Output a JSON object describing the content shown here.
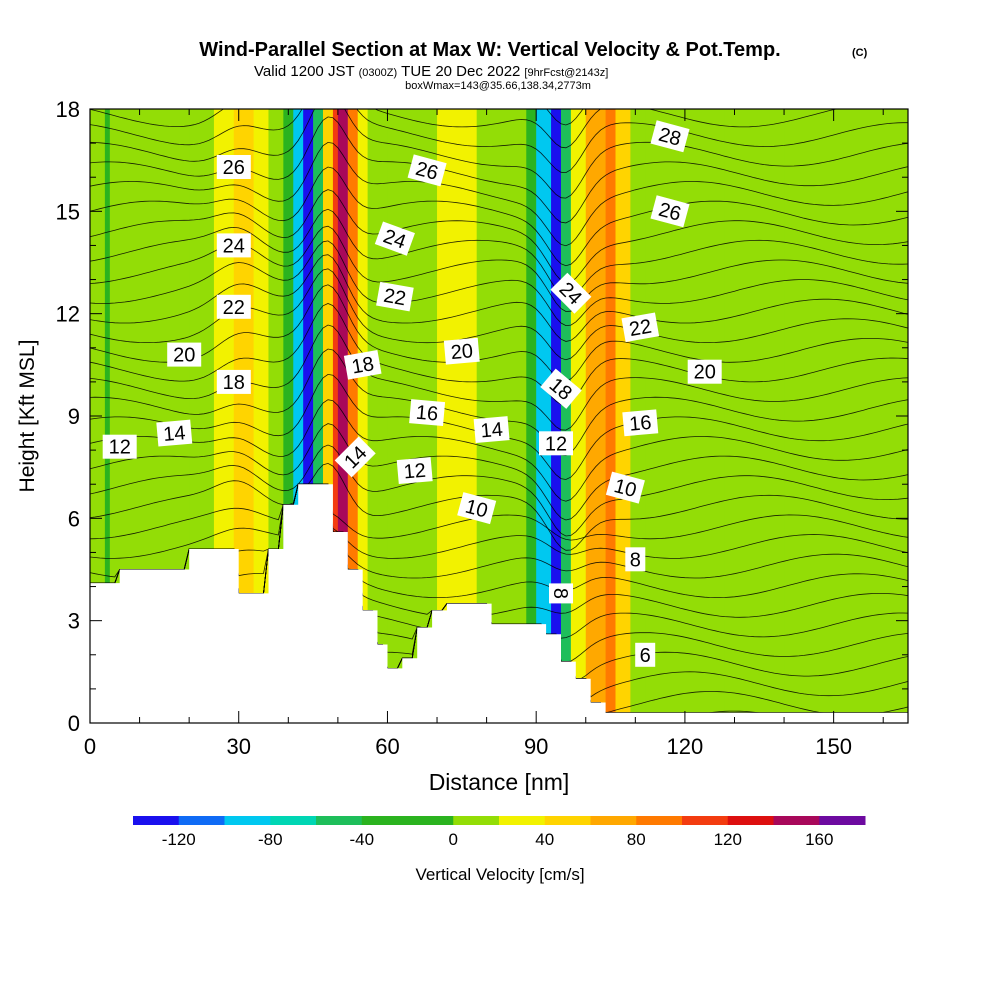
{
  "chart_data": {
    "type": "heatmap",
    "title": "Wind-Parallel Section at Max W: Vertical Velocity & Pot.Temp.",
    "title_units": "(C)",
    "subtitle_main": "Valid 1200 JST",
    "subtitle_utc": "(0300Z)",
    "subtitle_date": "TUE 20 Dec 2022",
    "subtitle_fcst": "[9hrFcst@2143z]",
    "subtitle_box": "boxWmax=143@35.66,138.34,2773m",
    "xlabel": "Distance [nm]",
    "ylabel": "Height [Kft MSL]",
    "xlim": [
      0,
      165
    ],
    "ylim": [
      0,
      18
    ],
    "x_ticks": [
      "0",
      "30",
      "60",
      "90",
      "120",
      "150"
    ],
    "x_tick_values": [
      0,
      30,
      60,
      90,
      120,
      150
    ],
    "y_ticks": [
      "0",
      "3",
      "6",
      "9",
      "12",
      "15",
      "18"
    ],
    "y_tick_values": [
      0,
      3,
      6,
      9,
      12,
      15,
      18
    ],
    "colorbar": {
      "label": "Vertical Velocity [cm/s]",
      "tick_labels": [
        "-120",
        "-80",
        "-40",
        "0",
        "40",
        "80",
        "120",
        "160"
      ],
      "tick_values": [
        -120,
        -80,
        -40,
        0,
        40,
        80,
        120,
        160
      ],
      "bounds": [
        -140,
        -120,
        -100,
        -80,
        -60,
        -40,
        -20,
        0,
        20,
        40,
        60,
        80,
        100,
        120,
        140,
        160,
        180
      ],
      "colors": [
        "#1a10ee",
        "#0f6bf5",
        "#00c8f0",
        "#00d6b4",
        "#1ebe5a",
        "#2bb31f",
        "#2bb31f",
        "#93dd06",
        "#f2f200",
        "#ffd400",
        "#ffa800",
        "#ff7a00",
        "#f33c10",
        "#dd0f0f",
        "#a8085a",
        "#6d0aa0"
      ]
    },
    "terrain_kft": [
      [
        0,
        4.1
      ],
      [
        6,
        4.1
      ],
      [
        6,
        4.5
      ],
      [
        20,
        4.5
      ],
      [
        20,
        5.1
      ],
      [
        30,
        5.1
      ],
      [
        30,
        3.8
      ],
      [
        36,
        3.8
      ],
      [
        36,
        5.1
      ],
      [
        39,
        5.1
      ],
      [
        39,
        6.4
      ],
      [
        42,
        6.4
      ],
      [
        42,
        7.0
      ],
      [
        49,
        7.0
      ],
      [
        49,
        5.6
      ],
      [
        52,
        5.6
      ],
      [
        52,
        4.5
      ],
      [
        55,
        4.5
      ],
      [
        55,
        3.3
      ],
      [
        58,
        3.3
      ],
      [
        58,
        2.3
      ],
      [
        60,
        2.3
      ],
      [
        60,
        1.6
      ],
      [
        63,
        1.6
      ],
      [
        63,
        1.9
      ],
      [
        66,
        1.9
      ],
      [
        66,
        2.8
      ],
      [
        69,
        2.8
      ],
      [
        69,
        3.3
      ],
      [
        72,
        3.3
      ],
      [
        72,
        3.5
      ],
      [
        81,
        3.5
      ],
      [
        81,
        2.9
      ],
      [
        92,
        2.9
      ],
      [
        92,
        2.6
      ],
      [
        95,
        2.6
      ],
      [
        95,
        1.8
      ],
      [
        98,
        1.8
      ],
      [
        98,
        1.3
      ],
      [
        101,
        1.3
      ],
      [
        101,
        0.6
      ],
      [
        104,
        0.6
      ],
      [
        104,
        0.3
      ],
      [
        165,
        0.3
      ]
    ],
    "vv_bands": [
      {
        "x0": 0,
        "x1": 3,
        "v": 10
      },
      {
        "x0": 3,
        "x1": 4,
        "v": -40
      },
      {
        "x0": 4,
        "x1": 10,
        "v": 10
      },
      {
        "x0": 10,
        "x1": 20,
        "v": 0
      },
      {
        "x0": 20,
        "x1": 25,
        "v": 10
      },
      {
        "x0": 25,
        "x1": 29,
        "v": 30
      },
      {
        "x0": 29,
        "x1": 33,
        "v": 50
      },
      {
        "x0": 33,
        "x1": 36,
        "v": 30
      },
      {
        "x0": 36,
        "x1": 39,
        "v": 10
      },
      {
        "x0": 39,
        "x1": 41,
        "v": -40
      },
      {
        "x0": 41,
        "x1": 43,
        "v": -100
      },
      {
        "x0": 43,
        "x1": 45,
        "v": -130
      },
      {
        "x0": 45,
        "x1": 47,
        "v": -60
      },
      {
        "x0": 47,
        "x1": 49,
        "v": 50
      },
      {
        "x0": 49,
        "x1": 50,
        "v": 100
      },
      {
        "x0": 50,
        "x1": 52,
        "v": 140
      },
      {
        "x0": 52,
        "x1": 54,
        "v": 90
      },
      {
        "x0": 54,
        "x1": 56,
        "v": 30
      },
      {
        "x0": 56,
        "x1": 60,
        "v": 10
      },
      {
        "x0": 60,
        "x1": 66,
        "v": 0
      },
      {
        "x0": 66,
        "x1": 70,
        "v": 10
      },
      {
        "x0": 70,
        "x1": 78,
        "v": 30
      },
      {
        "x0": 78,
        "x1": 86,
        "v": 0
      },
      {
        "x0": 86,
        "x1": 88,
        "v": 10
      },
      {
        "x0": 88,
        "x1": 90,
        "v": -40
      },
      {
        "x0": 90,
        "x1": 93,
        "v": -100
      },
      {
        "x0": 93,
        "x1": 95,
        "v": -130
      },
      {
        "x0": 95,
        "x1": 97,
        "v": -60
      },
      {
        "x0": 97,
        "x1": 100,
        "v": 30
      },
      {
        "x0": 100,
        "x1": 104,
        "v": 60
      },
      {
        "x0": 104,
        "x1": 106,
        "v": 90
      },
      {
        "x0": 106,
        "x1": 109,
        "v": 50
      },
      {
        "x0": 109,
        "x1": 112,
        "v": 10
      },
      {
        "x0": 112,
        "x1": 126,
        "v": 0
      },
      {
        "x0": 126,
        "x1": 128,
        "v": 10
      },
      {
        "x0": 128,
        "x1": 140,
        "v": 0
      },
      {
        "x0": 140,
        "x1": 165,
        "v": 10
      }
    ],
    "contour_labels": [
      {
        "text": "12",
        "x": 6,
        "y": 8.1,
        "angle": 0
      },
      {
        "text": "14",
        "x": 17,
        "y": 8.5,
        "angle": -5
      },
      {
        "text": "20",
        "x": 19,
        "y": 10.8,
        "angle": 0
      },
      {
        "text": "18",
        "x": 29,
        "y": 10.0,
        "angle": 0
      },
      {
        "text": "22",
        "x": 29,
        "y": 12.2,
        "angle": 0
      },
      {
        "text": "24",
        "x": 29,
        "y": 14.0,
        "angle": 0
      },
      {
        "text": "26",
        "x": 29,
        "y": 16.3,
        "angle": 0
      },
      {
        "text": "18",
        "x": 55,
        "y": 10.5,
        "angle": -10
      },
      {
        "text": "14",
        "x": 53.5,
        "y": 7.8,
        "angle": -45
      },
      {
        "text": "24",
        "x": 61.5,
        "y": 14.2,
        "angle": 20
      },
      {
        "text": "22",
        "x": 61.5,
        "y": 12.5,
        "angle": 10
      },
      {
        "text": "26",
        "x": 68,
        "y": 16.2,
        "angle": 15
      },
      {
        "text": "16",
        "x": 68,
        "y": 9.1,
        "angle": 5
      },
      {
        "text": "12",
        "x": 65.5,
        "y": 7.4,
        "angle": -5
      },
      {
        "text": "20",
        "x": 75,
        "y": 10.9,
        "angle": -5
      },
      {
        "text": "14",
        "x": 81,
        "y": 8.6,
        "angle": -5
      },
      {
        "text": "10",
        "x": 78,
        "y": 6.3,
        "angle": 15
      },
      {
        "text": "12",
        "x": 94,
        "y": 8.2,
        "angle": 0
      },
      {
        "text": "24",
        "x": 97,
        "y": 12.6,
        "angle": 45
      },
      {
        "text": "18",
        "x": 95,
        "y": 9.8,
        "angle": 40
      },
      {
        "text": "22",
        "x": 111,
        "y": 11.6,
        "angle": -10
      },
      {
        "text": "16",
        "x": 111,
        "y": 8.8,
        "angle": -5
      },
      {
        "text": "10",
        "x": 108,
        "y": 6.9,
        "angle": 15
      },
      {
        "text": "8",
        "x": 110,
        "y": 4.8,
        "angle": 0
      },
      {
        "text": "8",
        "x": 95,
        "y": 3.8,
        "angle": 90
      },
      {
        "text": "6",
        "x": 112,
        "y": 2.0,
        "angle": 0
      },
      {
        "text": "28",
        "x": 117,
        "y": 17.2,
        "angle": 15
      },
      {
        "text": "26",
        "x": 117,
        "y": 15.0,
        "angle": 15
      },
      {
        "text": "20",
        "x": 124,
        "y": 10.3,
        "angle": 0
      }
    ]
  }
}
